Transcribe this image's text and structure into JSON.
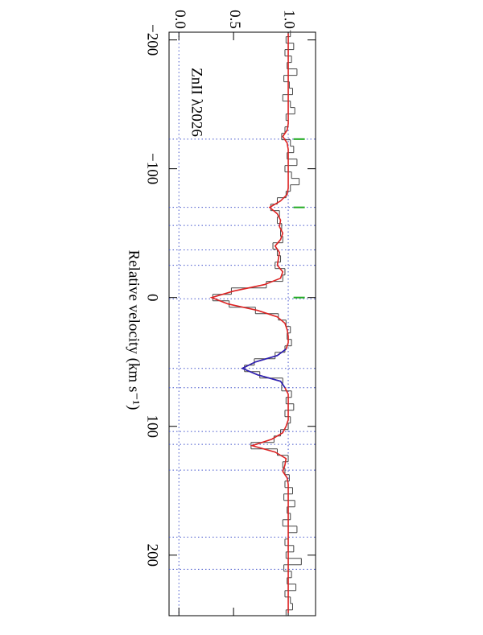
{
  "chart_data": {
    "type": "spectrum",
    "annotation": "ZnII λ2026",
    "x_label": "Relative velocity (km s⁻¹)",
    "xlim": [
      -206,
      247
    ],
    "xticks": [
      {
        "value": -200,
        "label": "−200"
      },
      {
        "value": -100,
        "label": "−100"
      },
      0,
      100,
      200
    ],
    "ylim": [
      -0.09,
      1.25
    ],
    "yticks": [
      {
        "value": 0,
        "label": "0.0"
      },
      0.5,
      {
        "value": 1,
        "label": "1.0"
      }
    ],
    "ref_levels": [
      0,
      1
    ],
    "component_velocities": [
      -123,
      -70,
      -56,
      -37,
      -25,
      1,
      55,
      70,
      104,
      114,
      134,
      186,
      211
    ],
    "tick_marks": {
      "velocities": [
        -123,
        -70,
        0
      ],
      "level": 1.1,
      "color": "#22aa22"
    },
    "x": [
      -205,
      -200,
      -195,
      -190,
      -185,
      -180,
      -175,
      -170,
      -165,
      -160,
      -155,
      -150,
      -145,
      -140,
      -135,
      -130,
      -125,
      -120,
      -115,
      -110,
      -105,
      -100,
      -95,
      -90,
      -85,
      -80,
      -75,
      -70,
      -65,
      -60,
      -55,
      -50,
      -45,
      -40,
      -35,
      -30,
      -25,
      -20,
      -15,
      -10,
      -5,
      0,
      5,
      10,
      15,
      20,
      25,
      30,
      35,
      40,
      45,
      50,
      55,
      60,
      65,
      70,
      75,
      80,
      85,
      90,
      95,
      100,
      105,
      110,
      115,
      120,
      125,
      130,
      135,
      140,
      145,
      150,
      155,
      160,
      165,
      170,
      175,
      180,
      185,
      190,
      195,
      200,
      205,
      210,
      215,
      220,
      225,
      230,
      235,
      240,
      245
    ],
    "series": [
      {
        "kind": "data",
        "color": "#444444",
        "values": [
          1.02,
          0.98,
          1.05,
          0.97,
          1.03,
          0.99,
          1.08,
          0.96,
          1.01,
          1.04,
          0.95,
          1.02,
          1.06,
          0.98,
          1.0,
          0.97,
          0.94,
          1.02,
          1.05,
          0.99,
          1.08,
          0.97,
          1.03,
          1.1,
          1.02,
          0.98,
          0.9,
          0.84,
          0.92,
          0.9,
          0.94,
          0.93,
          0.95,
          0.86,
          0.9,
          0.93,
          0.88,
          0.97,
          0.95,
          0.8,
          0.48,
          0.31,
          0.46,
          0.7,
          0.91,
          0.98,
          1.02,
          0.99,
          1.03,
          0.97,
          0.88,
          0.69,
          0.6,
          0.74,
          0.95,
          0.94,
          1.03,
          0.98,
          1.05,
          0.97,
          1.02,
          1.0,
          0.93,
          0.87,
          0.66,
          0.9,
          1.0,
          0.95,
          0.97,
          1.01,
          0.97,
          1.04,
          0.96,
          1.06,
          0.99,
          1.02,
          0.95,
          1.08,
          1.0,
          0.97,
          1.05,
          0.98,
          1.12,
          0.96,
          1.03,
          0.99,
          1.07,
          0.97,
          1.02,
          1.04,
          0.98
        ]
      },
      {
        "kind": "fit",
        "color": "#dd2222",
        "values": [
          1,
          1,
          1,
          1,
          1,
          1,
          1,
          1,
          1,
          1,
          1,
          1,
          1,
          1,
          1,
          0.99,
          0.95,
          0.99,
          1,
          1,
          1,
          1,
          1,
          1,
          1,
          0.99,
          0.93,
          0.83,
          0.9,
          0.93,
          0.92,
          0.95,
          0.93,
          0.88,
          0.92,
          0.91,
          0.9,
          0.95,
          0.93,
          0.78,
          0.5,
          0.3,
          0.45,
          0.72,
          0.9,
          0.97,
          0.99,
          1,
          1,
          0.98,
          0.9,
          0.7,
          0.58,
          0.72,
          0.93,
          0.97,
          1,
          1,
          1,
          1,
          1,
          0.98,
          0.95,
          0.85,
          0.67,
          0.88,
          0.98,
          0.97,
          0.95,
          0.99,
          1,
          1,
          1,
          1,
          1,
          1,
          1,
          1,
          1,
          1,
          1,
          1,
          1,
          1,
          1,
          1,
          1,
          1,
          1,
          1,
          1
        ]
      },
      {
        "kind": "fit",
        "color": "#2222bb",
        "values": [
          null,
          null,
          null,
          null,
          null,
          null,
          null,
          null,
          null,
          null,
          null,
          null,
          null,
          null,
          null,
          null,
          null,
          null,
          null,
          null,
          null,
          null,
          null,
          null,
          null,
          null,
          null,
          null,
          null,
          null,
          null,
          null,
          null,
          null,
          null,
          null,
          null,
          null,
          null,
          null,
          null,
          null,
          null,
          null,
          null,
          null,
          null,
          null,
          null,
          0.98,
          0.9,
          0.7,
          0.58,
          0.72,
          0.93,
          0.97,
          null,
          null,
          null,
          null,
          null,
          null,
          null,
          null,
          null,
          null,
          null,
          null,
          null,
          null,
          null,
          null,
          null,
          null,
          null,
          null,
          null,
          null,
          null,
          null,
          null,
          null,
          null,
          null,
          null,
          null,
          null,
          null,
          null,
          null,
          null
        ]
      }
    ]
  }
}
